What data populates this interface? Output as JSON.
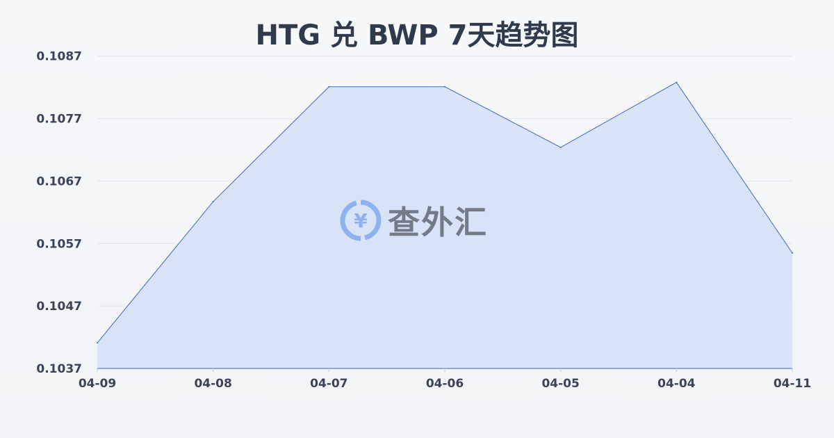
{
  "chart_data": {
    "type": "area",
    "title": "HTG 兑 BWP 7天趋势图",
    "categories": [
      "04-09",
      "04-08",
      "04-07",
      "04-06",
      "04-05",
      "04-04",
      "04-11"
    ],
    "series": [
      {
        "values": [
          0.10411,
          0.10637,
          0.10821,
          0.10821,
          0.10724,
          0.10828,
          0.10555
        ]
      }
    ],
    "yticks": [
      "0.1087",
      "0.1077",
      "0.1067",
      "0.1057",
      "0.1047",
      "0.1037"
    ],
    "ylim": [
      0.1037,
      0.1087
    ],
    "grid": true,
    "colors": {
      "line": "#3a66c9",
      "fill": "#d6e1f6",
      "grid": "#e3e6ec"
    }
  },
  "watermark": {
    "text": "查外汇",
    "icon": "yen-exchange-icon"
  }
}
